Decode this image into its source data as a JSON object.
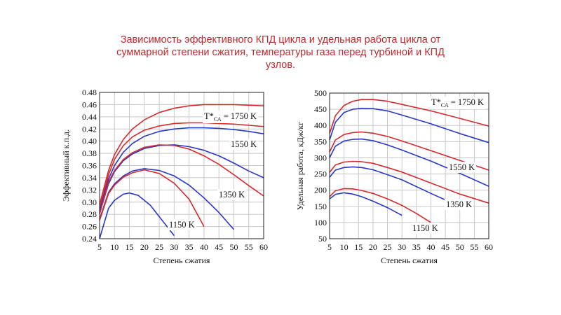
{
  "title_lines": [
    "Зависимость эффективного КПД цикла и удельная работа цикла от",
    "суммарной степени сжатия, температуры газа перед турбиной и КПД",
    "узлов."
  ],
  "colors": {
    "title": "#c0282c",
    "red": "#d8282c",
    "blue": "#2838c8",
    "grid": "#c8c8c8"
  },
  "chart_data": [
    {
      "type": "line",
      "xlabel": "Степень сжатия",
      "ylabel": "Эффективный к.п.д.",
      "xlim": [
        5,
        60
      ],
      "ylim": [
        0.24,
        0.48
      ],
      "xticks": [
        5,
        10,
        15,
        20,
        25,
        30,
        35,
        40,
        45,
        50,
        55,
        60
      ],
      "yticks": [
        0.24,
        0.26,
        0.28,
        0.3,
        0.32,
        0.34,
        0.36,
        0.38,
        0.4,
        0.42,
        0.44,
        0.46,
        0.48
      ],
      "ytick_labels": [
        "0.24",
        "0.26",
        "0.28",
        "0.30",
        "0.32",
        "0.34",
        "0.36",
        "0.38",
        "0.40",
        "0.42",
        "0.44",
        "0.46",
        "0.48"
      ],
      "grid": true,
      "series": [
        {
          "color": "red",
          "x": [
            5,
            8,
            10,
            13,
            16,
            20,
            25,
            30,
            35,
            40,
            45,
            50,
            55,
            60
          ],
          "y": [
            0.296,
            0.352,
            0.378,
            0.403,
            0.42,
            0.435,
            0.447,
            0.454,
            0.458,
            0.46,
            0.46,
            0.46,
            0.459,
            0.458
          ]
        },
        {
          "color": "red",
          "x": [
            5,
            8,
            10,
            13,
            16,
            20,
            25,
            30,
            35,
            40,
            45,
            50,
            55,
            60
          ],
          "y": [
            0.29,
            0.345,
            0.37,
            0.393,
            0.407,
            0.418,
            0.425,
            0.429,
            0.43,
            0.43,
            0.429,
            0.428,
            0.426,
            0.424
          ]
        },
        {
          "color": "blue",
          "x": [
            5,
            8,
            10,
            13,
            16,
            20,
            25,
            30,
            35,
            40,
            45,
            50,
            55,
            60
          ],
          "y": [
            0.285,
            0.338,
            0.36,
            0.382,
            0.396,
            0.408,
            0.416,
            0.42,
            0.422,
            0.422,
            0.421,
            0.419,
            0.416,
            0.412
          ]
        },
        {
          "color": "blue",
          "x": [
            5,
            8,
            10,
            13,
            16,
            20,
            25,
            30,
            35,
            40,
            45,
            50,
            55,
            60
          ],
          "y": [
            0.282,
            0.33,
            0.35,
            0.368,
            0.379,
            0.388,
            0.393,
            0.394,
            0.391,
            0.385,
            0.376,
            0.364,
            0.351,
            0.34
          ]
        },
        {
          "color": "red",
          "x": [
            5,
            8,
            10,
            13,
            16,
            20,
            25,
            30,
            35,
            40,
            45,
            50,
            55,
            60
          ],
          "y": [
            0.28,
            0.333,
            0.352,
            0.37,
            0.381,
            0.39,
            0.394,
            0.393,
            0.387,
            0.376,
            0.362,
            0.345,
            0.327,
            0.31
          ]
        },
        {
          "color": "blue",
          "x": [
            5,
            8,
            10,
            13,
            16,
            20,
            25,
            30,
            35,
            40,
            45,
            50
          ],
          "y": [
            0.272,
            0.316,
            0.33,
            0.343,
            0.351,
            0.355,
            0.352,
            0.343,
            0.328,
            0.307,
            0.283,
            0.255
          ]
        },
        {
          "color": "red",
          "x": [
            5,
            8,
            10,
            13,
            16,
            20,
            25,
            30,
            35,
            40
          ],
          "y": [
            0.27,
            0.314,
            0.328,
            0.341,
            0.348,
            0.353,
            0.347,
            0.331,
            0.305,
            0.26
          ]
        },
        {
          "color": "blue",
          "x": [
            5,
            8,
            10,
            13,
            15,
            18,
            22,
            26,
            30
          ],
          "y": [
            0.24,
            0.29,
            0.303,
            0.313,
            0.315,
            0.311,
            0.295,
            0.27,
            0.245
          ]
        }
      ],
      "annotations": [
        "T*<sub>СА</sub> = 1750 K",
        "1550 K",
        "1350 K",
        "1150 K"
      ]
    },
    {
      "type": "line",
      "xlabel": "Степень сжатия",
      "ylabel": "Удельная работа, кДж/кг",
      "xlim": [
        5,
        60
      ],
      "ylim": [
        50,
        500
      ],
      "xticks": [
        5,
        10,
        15,
        20,
        25,
        30,
        35,
        40,
        45,
        50,
        55,
        60
      ],
      "yticks": [
        50,
        100,
        150,
        200,
        250,
        300,
        350,
        400,
        450,
        500
      ],
      "ytick_labels": [
        "50",
        "100",
        "150",
        "200",
        "250",
        "300",
        "350",
        "400",
        "450",
        "500"
      ],
      "grid": true,
      "series": [
        {
          "color": "red",
          "x": [
            5,
            7,
            10,
            13,
            16,
            20,
            25,
            30,
            40,
            50,
            60
          ],
          "y": [
            375,
            430,
            462,
            475,
            480,
            480,
            475,
            465,
            445,
            422,
            398
          ]
        },
        {
          "color": "blue",
          "x": [
            5,
            7,
            10,
            13,
            16,
            20,
            25,
            30,
            40,
            50,
            60
          ],
          "y": [
            355,
            410,
            440,
            450,
            453,
            452,
            445,
            432,
            405,
            375,
            347
          ]
        },
        {
          "color": "red",
          "x": [
            5,
            7,
            10,
            13,
            16,
            20,
            25,
            30,
            40,
            50,
            60
          ],
          "y": [
            318,
            355,
            372,
            378,
            380,
            376,
            366,
            352,
            322,
            292,
            262
          ]
        },
        {
          "color": "blue",
          "x": [
            5,
            7,
            10,
            13,
            16,
            20,
            25,
            30,
            40,
            50,
            60
          ],
          "y": [
            300,
            336,
            352,
            357,
            358,
            353,
            340,
            324,
            290,
            252,
            212
          ]
        },
        {
          "color": "red",
          "x": [
            5,
            7,
            10,
            13,
            16,
            20,
            25,
            30,
            40,
            50,
            60
          ],
          "y": [
            255,
            278,
            287,
            289,
            288,
            283,
            270,
            256,
            222,
            188,
            160
          ]
        },
        {
          "color": "blue",
          "x": [
            5,
            7,
            10,
            13,
            16,
            20,
            25,
            30,
            40,
            50
          ],
          "y": [
            240,
            262,
            270,
            272,
            270,
            263,
            248,
            232,
            190,
            150
          ]
        },
        {
          "color": "red",
          "x": [
            5,
            7,
            10,
            13,
            16,
            20,
            25,
            30,
            35,
            40
          ],
          "y": [
            180,
            198,
            205,
            204,
            199,
            190,
            173,
            153,
            128,
            100
          ]
        },
        {
          "color": "blue",
          "x": [
            5,
            7,
            10,
            13,
            16,
            20,
            25,
            30
          ],
          "y": [
            173,
            187,
            192,
            188,
            180,
            166,
            146,
            122
          ]
        }
      ],
      "annotations": [
        "T*<sub>СА</sub> = 1750 K",
        "1550 K",
        "1350 K",
        "1150 K"
      ]
    }
  ]
}
